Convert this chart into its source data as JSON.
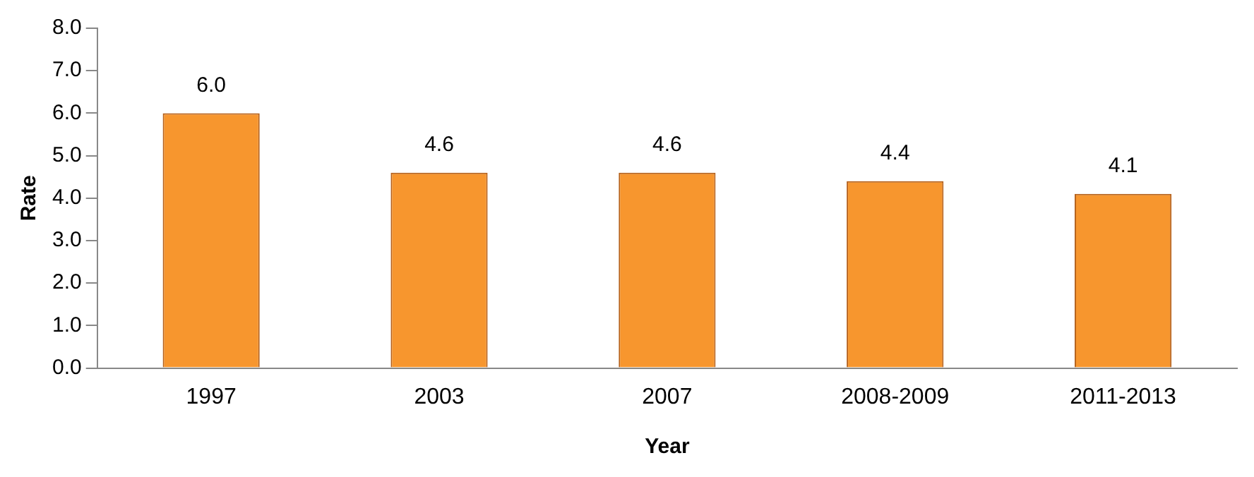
{
  "chart_data": {
    "type": "bar",
    "xlabel": "Year",
    "ylabel": "Rate",
    "categories": [
      "1997",
      "2003",
      "2007",
      "2008-2009",
      "2011-2013"
    ],
    "values": [
      6.0,
      4.6,
      4.6,
      4.4,
      4.1
    ],
    "color": "#f7962e",
    "ylim": [
      0,
      8
    ],
    "yticks": [
      {
        "value": 0,
        "label": "0.0"
      },
      {
        "value": 1,
        "label": "1.0"
      },
      {
        "value": 2,
        "label": "2.0"
      },
      {
        "value": 3,
        "label": "3.0"
      },
      {
        "value": 4,
        "label": "4.0"
      },
      {
        "value": 5,
        "label": "5.0"
      },
      {
        "value": 6,
        "label": "6.0"
      },
      {
        "value": 7,
        "label": "7.0"
      },
      {
        "value": 8,
        "label": "8.0"
      }
    ],
    "value_labels": [
      "6.0",
      "4.6",
      "4.6",
      "4.4",
      "4.1"
    ],
    "grid": false,
    "legend": false
  }
}
